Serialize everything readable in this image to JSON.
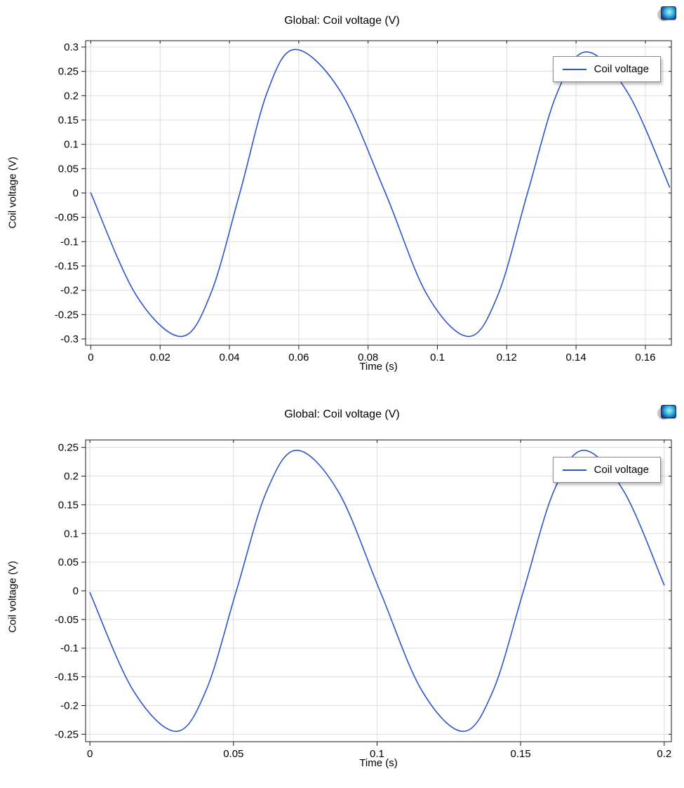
{
  "page": {
    "background": "#ffffff"
  },
  "icons": {
    "corner_icon": "comsol-plot-thumbnail-icon"
  },
  "chart_data": [
    {
      "type": "line",
      "title": "Global: Coil voltage (V)",
      "xlabel": "Time (s)",
      "ylabel": "Coil voltage (V)",
      "legend": [
        "Coil voltage"
      ],
      "legend_position": "top-right",
      "grid": true,
      "line_color": "#2d55c8",
      "xlim": [
        -0.0015,
        0.1675
      ],
      "ylim": [
        -0.313,
        0.313
      ],
      "xticks": [
        0,
        0.02,
        0.04,
        0.06,
        0.08,
        0.1,
        0.12,
        0.14,
        0.16
      ],
      "xtick_labels": [
        "0",
        "0.02",
        "0.04",
        "0.06",
        "0.08",
        "0.1",
        "0.12",
        "0.14",
        "0.16"
      ],
      "yticks": [
        0.3,
        0.25,
        0.2,
        0.15,
        0.1,
        0.05,
        0,
        -0.05,
        -0.1,
        -0.15,
        -0.2,
        -0.25,
        -0.3
      ],
      "ytick_labels": [
        "0.3",
        "0.25",
        "0.2",
        "0.15",
        "0.1",
        "0.05",
        "0",
        "-0.05",
        "-0.1",
        "-0.15",
        "-0.2",
        "-0.25",
        "-0.3"
      ],
      "series": [
        {
          "name": "Coil voltage",
          "points": [
            [
              0,
              0
            ],
            [
              0.013,
              -0.209
            ],
            [
              0.026,
              -0.295
            ],
            [
              0.0345,
              -0.209
            ],
            [
              0.043,
              0
            ],
            [
              0.051,
              0.209
            ],
            [
              0.059,
              0.295
            ],
            [
              0.072,
              0.209
            ],
            [
              0.085,
              0
            ],
            [
              0.097,
              -0.209
            ],
            [
              0.109,
              -0.295
            ],
            [
              0.1175,
              -0.209
            ],
            [
              0.126,
              0
            ],
            [
              0.1345,
              0.205
            ],
            [
              0.143,
              0.29
            ],
            [
              0.155,
              0.205
            ],
            [
              0.167,
              0.012
            ]
          ]
        }
      ]
    },
    {
      "type": "line",
      "title": "Global: Coil voltage (V)",
      "xlabel": "Time (s)",
      "ylabel": "Coil voltage (V)",
      "legend": [
        "Coil voltage"
      ],
      "legend_position": "top-right",
      "grid": true,
      "line_color": "#2d55c8",
      "xlim": [
        -0.0015,
        0.2025
      ],
      "ylim": [
        -0.263,
        0.263
      ],
      "xticks": [
        0,
        0.05,
        0.1,
        0.15,
        0.2
      ],
      "xtick_labels": [
        "0",
        "0.05",
        "0.1",
        "0.15",
        "0.2"
      ],
      "yticks": [
        0.25,
        0.2,
        0.15,
        0.1,
        0.05,
        0,
        -0.05,
        -0.1,
        -0.15,
        -0.2,
        -0.25
      ],
      "ytick_labels": [
        "0.25",
        "0.2",
        "0.15",
        "0.1",
        "0.05",
        "0",
        "-0.05",
        "-0.1",
        "-0.15",
        "-0.2",
        "-0.25"
      ],
      "series": [
        {
          "name": "Coil voltage",
          "points": [
            [
              0,
              -0.003
            ],
            [
              0.015,
              -0.173
            ],
            [
              0.03,
              -0.245
            ],
            [
              0.0405,
              -0.173
            ],
            [
              0.051,
              0
            ],
            [
              0.0615,
              0.173
            ],
            [
              0.072,
              0.245
            ],
            [
              0.0865,
              0.173
            ],
            [
              0.101,
              0
            ],
            [
              0.1155,
              -0.173
            ],
            [
              0.13,
              -0.245
            ],
            [
              0.1405,
              -0.173
            ],
            [
              0.151,
              0
            ],
            [
              0.1615,
              0.173
            ],
            [
              0.172,
              0.245
            ],
            [
              0.186,
              0.173
            ],
            [
              0.2,
              0.01
            ]
          ]
        }
      ]
    }
  ]
}
